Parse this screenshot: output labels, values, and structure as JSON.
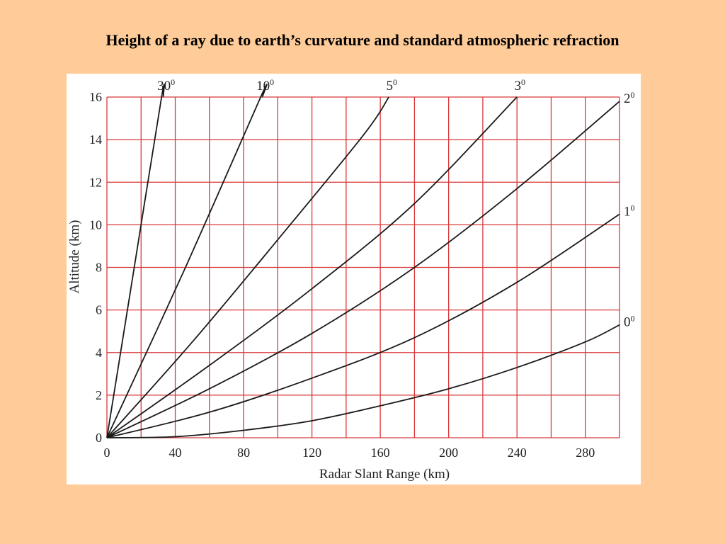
{
  "slide": {
    "title": "Height of a ray due to earth’s curvature and standard atmospheric refraction"
  },
  "colors": {
    "background": "#FFCC99",
    "panel": "#FFFFFF",
    "grid": "#D9383A",
    "line": "#1A1A1A"
  },
  "chart_data": {
    "type": "line",
    "title": "",
    "xlabel": "Radar Slant Range (km)",
    "ylabel": "Altitude (km)",
    "xlim": [
      0,
      300
    ],
    "ylim": [
      0,
      16
    ],
    "x_ticks": [
      0,
      40,
      80,
      120,
      160,
      200,
      240,
      280
    ],
    "y_ticks": [
      0,
      2,
      4,
      6,
      8,
      10,
      12,
      14,
      16
    ],
    "x_grid_step": 20,
    "y_grid_step": 2,
    "grid": true,
    "legend": "curve-end labels",
    "series": [
      {
        "label": "30",
        "label_sup": "0",
        "x": [
          0,
          16,
          32,
          33
        ],
        "y": [
          0,
          8.0,
          16.0,
          16.0
        ]
      },
      {
        "label": "10",
        "label_sup": "0",
        "x": [
          0,
          46,
          90,
          91
        ],
        "y": [
          0,
          8.0,
          16.0,
          16.0
        ]
      },
      {
        "label": "5",
        "label_sup": "0",
        "x": [
          0,
          50,
          100,
          150,
          165
        ],
        "y": [
          0,
          4.5,
          9.3,
          14.2,
          16.0
        ]
      },
      {
        "label": "3",
        "label_sup": "0",
        "x": [
          0,
          60,
          120,
          180,
          240
        ],
        "y": [
          0,
          3.4,
          7.0,
          11.0,
          16.0
        ]
      },
      {
        "label": "2",
        "label_sup": "0",
        "x": [
          0,
          60,
          120,
          180,
          240,
          300
        ],
        "y": [
          0,
          2.3,
          4.9,
          8.0,
          11.7,
          15.8
        ]
      },
      {
        "label": "1",
        "label_sup": "0",
        "x": [
          0,
          60,
          120,
          180,
          240,
          300
        ],
        "y": [
          0,
          1.2,
          2.8,
          4.7,
          7.3,
          10.5
        ]
      },
      {
        "label": "0",
        "label_sup": "0",
        "x": [
          0,
          40,
          80,
          120,
          160,
          200,
          240,
          280,
          300
        ],
        "y": [
          0,
          0.05,
          0.35,
          0.8,
          1.5,
          2.3,
          3.3,
          4.5,
          5.3
        ]
      }
    ]
  }
}
